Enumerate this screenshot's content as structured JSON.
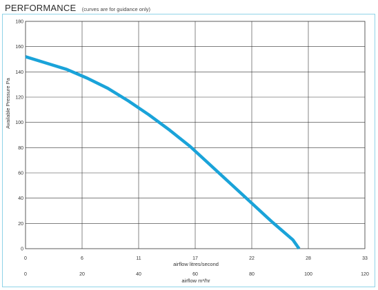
{
  "header": {
    "title": "PERFORMANCE",
    "subtitle": "(curves are for guidance only)"
  },
  "chart_data": {
    "type": "line",
    "title": "PERFORMANCE",
    "subtitle": "(curves are for guidance only)",
    "ylabel": "Available Pressure Pa",
    "xlabel": "airflow litres/second",
    "x2label": "airflow m³/hr",
    "ylim": [
      0,
      180
    ],
    "yticks": [
      "0",
      "20",
      "40",
      "60",
      "80",
      "100",
      "120",
      "140",
      "160",
      "180"
    ],
    "xlim": [
      0,
      33
    ],
    "xticks": [
      "0",
      "6",
      "11",
      "17",
      "22",
      "28",
      "33"
    ],
    "x2lim": [
      0,
      120
    ],
    "x2ticks": [
      "0",
      "20",
      "40",
      "60",
      "80",
      "100",
      "120"
    ],
    "grid": true,
    "line_color": "#1aa3d9",
    "series": [
      {
        "x": [
          0,
          2,
          4,
          6,
          8,
          10,
          12,
          14,
          16,
          18,
          20,
          22,
          24,
          26,
          26.6
        ],
        "y": [
          152,
          147,
          142,
          135,
          127,
          117,
          106,
          94,
          81,
          66,
          51,
          36,
          21,
          7,
          0
        ]
      }
    ]
  }
}
